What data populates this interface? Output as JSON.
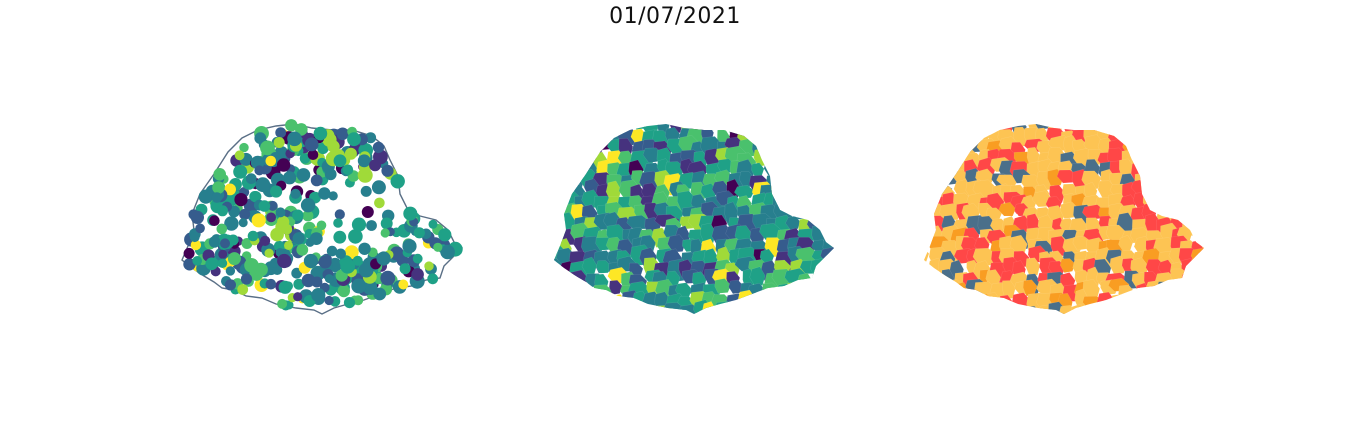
{
  "figure": {
    "title": "01/07/2021"
  },
  "colors": {
    "viridis": [
      "#440154",
      "#46327e",
      "#365c8d",
      "#277f8e",
      "#1fa187",
      "#4ac16d",
      "#a0da39",
      "#fde725"
    ],
    "classes": [
      "#fdc453",
      "#ff4747",
      "#4a6f8a",
      "#f99d22"
    ],
    "outline": "#5a6f86"
  },
  "maps": [
    {
      "name": "points-map",
      "kind": "proportional-points"
    },
    {
      "name": "choropleth-map",
      "kind": "continuous-choropleth"
    },
    {
      "name": "category-map",
      "kind": "categorical-choropleth"
    }
  ]
}
